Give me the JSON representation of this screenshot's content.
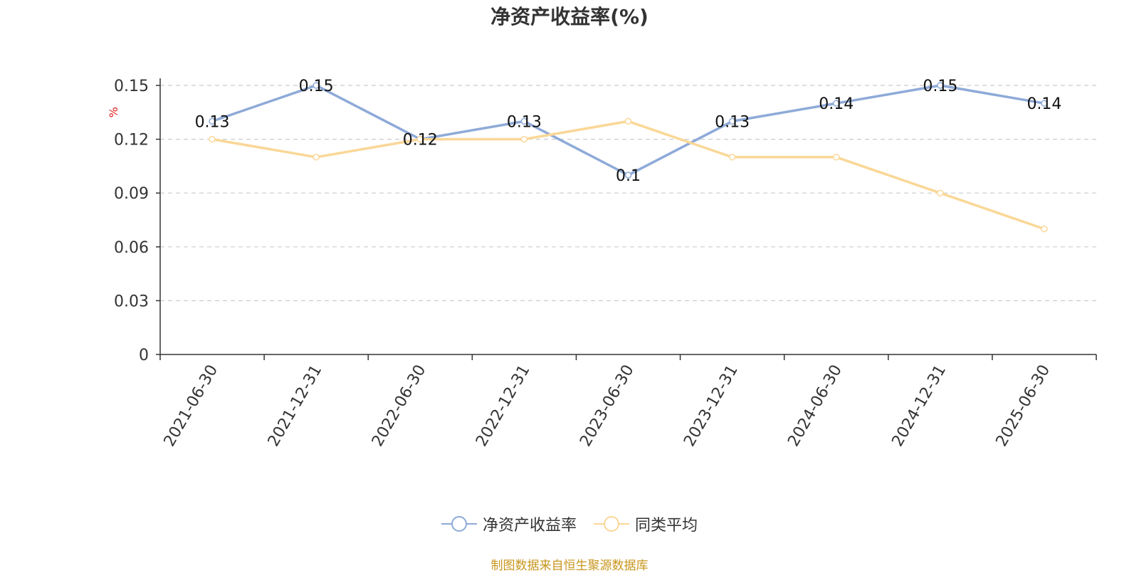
{
  "chart_data": {
    "type": "line",
    "title": "净资产收益率(%)",
    "ylabel": "%",
    "xlabel": "",
    "categories": [
      "2021-06-30",
      "2021-12-31",
      "2022-06-30",
      "2022-12-31",
      "2023-06-30",
      "2023-12-31",
      "2024-06-30",
      "2024-12-31",
      "2025-06-30"
    ],
    "ylim": [
      0,
      0.15
    ],
    "yticks": [
      "0",
      "0.03",
      "0.06",
      "0.09",
      "0.12",
      "0.15"
    ],
    "grid": true,
    "legend_position": "bottom",
    "series": [
      {
        "name": "净资产收益率",
        "color": "#8eaad8",
        "values": [
          0.13,
          0.15,
          0.12,
          0.13,
          0.1,
          0.13,
          0.14,
          0.15,
          0.14
        ],
        "labels": [
          "0.13",
          "0.15",
          "0.12",
          "0.13",
          "0.1",
          "0.13",
          "0.14",
          "0.15",
          "0.14"
        ]
      },
      {
        "name": "同类平均",
        "color": "#fad797",
        "values": [
          0.12,
          0.11,
          0.12,
          0.12,
          0.13,
          0.11,
          0.11,
          0.09,
          0.07
        ]
      }
    ],
    "source": "制图数据来自恒生聚源数据库"
  }
}
